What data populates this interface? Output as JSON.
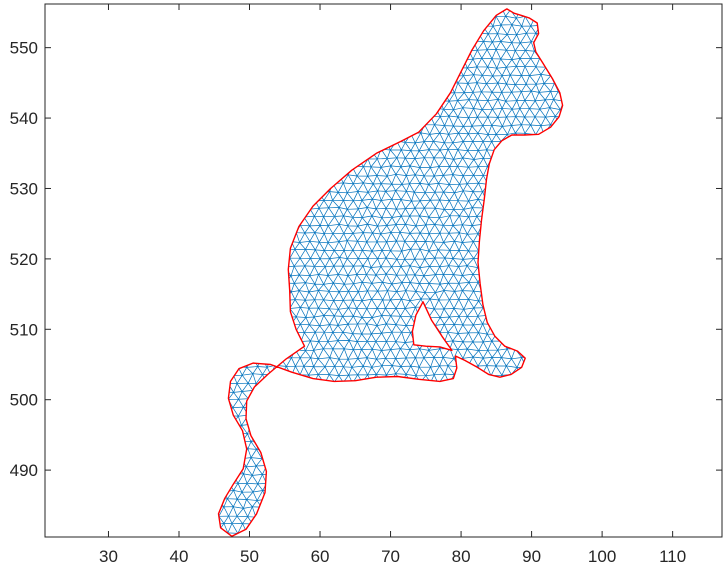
{
  "chart_data": {
    "type": "mesh",
    "title": "",
    "xlabel": "",
    "ylabel": "",
    "xlim": [
      21,
      117
    ],
    "ylim": [
      480.5,
      556.2
    ],
    "xticks": [
      30,
      40,
      50,
      60,
      70,
      80,
      90,
      100,
      110
    ],
    "yticks": [
      490,
      500,
      510,
      520,
      530,
      540,
      550
    ],
    "grid": false,
    "box": true,
    "colors": {
      "mesh": "#0072BD",
      "boundary": "#FF0000",
      "axes": "#262626"
    },
    "boundary": [
      [
        47.5,
        480.6
      ],
      [
        49.5,
        481.6
      ],
      [
        51.0,
        483.8
      ],
      [
        52.2,
        486.8
      ],
      [
        52.4,
        489.8
      ],
      [
        51.6,
        492.5
      ],
      [
        50.2,
        494.9
      ],
      [
        49.5,
        497.3
      ],
      [
        49.6,
        499.8
      ],
      [
        50.7,
        501.8
      ],
      [
        52.6,
        503.6
      ],
      [
        55.2,
        505.8
      ],
      [
        57.8,
        507.6
      ],
      [
        56.6,
        510.0
      ],
      [
        55.8,
        512.5
      ],
      [
        55.7,
        515.5
      ],
      [
        55.5,
        518.5
      ],
      [
        55.8,
        521.5
      ],
      [
        57.0,
        524.6
      ],
      [
        59.0,
        527.5
      ],
      [
        61.5,
        530.0
      ],
      [
        64.5,
        532.6
      ],
      [
        68.0,
        535.0
      ],
      [
        71.5,
        536.7
      ],
      [
        74.0,
        538.0
      ],
      [
        76.5,
        540.6
      ],
      [
        78.5,
        543.6
      ],
      [
        80.0,
        546.6
      ],
      [
        81.5,
        549.6
      ],
      [
        83.2,
        552.4
      ],
      [
        85.0,
        554.6
      ],
      [
        86.5,
        555.5
      ],
      [
        87.5,
        554.9
      ],
      [
        88.5,
        554.6
      ],
      [
        89.7,
        554.2
      ],
      [
        90.8,
        553.5
      ],
      [
        91.0,
        552.0
      ],
      [
        90.3,
        550.7
      ],
      [
        90.6,
        549.4
      ],
      [
        91.6,
        547.8
      ],
      [
        93.0,
        545.5
      ],
      [
        94.0,
        543.6
      ],
      [
        94.4,
        541.8
      ],
      [
        93.9,
        540.2
      ],
      [
        92.7,
        538.7
      ],
      [
        91.0,
        537.7
      ],
      [
        89.0,
        537.6
      ],
      [
        87.2,
        537.6
      ],
      [
        85.8,
        536.8
      ],
      [
        84.7,
        535.5
      ],
      [
        84.0,
        533.5
      ],
      [
        83.6,
        531.3
      ],
      [
        83.3,
        528.5
      ],
      [
        82.9,
        525.5
      ],
      [
        82.6,
        522.5
      ],
      [
        82.4,
        519.5
      ],
      [
        82.7,
        516.5
      ],
      [
        83.1,
        513.5
      ],
      [
        83.7,
        511.0
      ],
      [
        84.8,
        509.0
      ],
      [
        86.2,
        507.6
      ],
      [
        88.0,
        506.9
      ],
      [
        89.1,
        505.9
      ],
      [
        88.6,
        504.6
      ],
      [
        87.1,
        503.6
      ],
      [
        85.5,
        503.2
      ],
      [
        83.9,
        503.6
      ],
      [
        82.3,
        504.6
      ],
      [
        80.5,
        505.6
      ],
      [
        79.2,
        506.2
      ],
      [
        79.4,
        504.5
      ],
      [
        78.9,
        503.0
      ],
      [
        77.0,
        502.6
      ],
      [
        74.0,
        502.9
      ],
      [
        71.0,
        503.3
      ],
      [
        68.0,
        503.2
      ],
      [
        65.0,
        502.7
      ],
      [
        62.0,
        502.6
      ],
      [
        59.0,
        503.0
      ],
      [
        56.0,
        503.9
      ],
      [
        53.0,
        505.0
      ],
      [
        50.5,
        505.2
      ],
      [
        48.5,
        504.4
      ],
      [
        47.3,
        502.6
      ],
      [
        47.0,
        500.2
      ],
      [
        47.7,
        497.8
      ],
      [
        49.0,
        495.6
      ],
      [
        49.6,
        493.0
      ],
      [
        49.1,
        490.2
      ],
      [
        47.7,
        488.0
      ],
      [
        46.5,
        486.0
      ],
      [
        45.6,
        483.8
      ],
      [
        45.9,
        481.8
      ]
    ],
    "hole": [
      [
        74.6,
        513.9
      ],
      [
        75.8,
        511.3
      ],
      [
        77.3,
        509.0
      ],
      [
        78.7,
        507.0
      ],
      [
        77.0,
        507.5
      ],
      [
        75.0,
        507.6
      ],
      [
        73.3,
        507.8
      ],
      [
        73.1,
        509.7
      ],
      [
        73.6,
        512.0
      ]
    ]
  }
}
